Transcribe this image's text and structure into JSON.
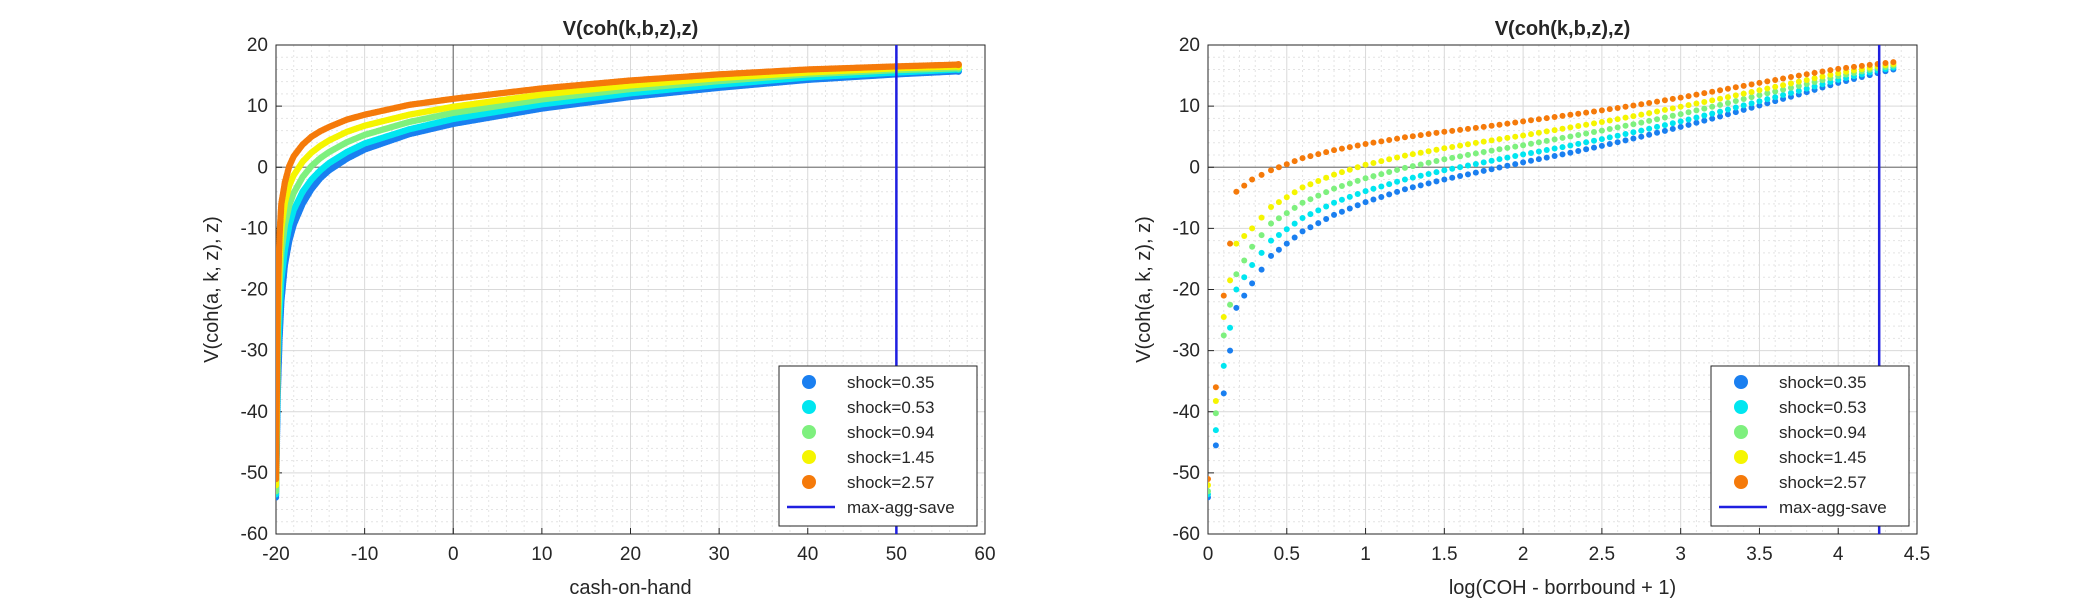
{
  "chart_data": [
    {
      "type": "scatter",
      "title": "V(coh(k,b,z),z)",
      "xlabel": "cash-on-hand",
      "ylabel": "V(coh(a, k, z), z)",
      "xlim": [
        -20,
        60
      ],
      "ylim": [
        -60,
        20
      ],
      "xticks": [
        -20,
        -10,
        0,
        10,
        20,
        30,
        40,
        50,
        60
      ],
      "yticks": [
        -60,
        -50,
        -40,
        -30,
        -20,
        -10,
        0,
        10,
        20
      ],
      "grid": true,
      "minor_grid": true,
      "legend_position": "bottom-right",
      "reference_lines": {
        "x": 0,
        "y": 0
      },
      "vertical_line": {
        "name": "max-agg-save",
        "x": 50,
        "color": "#1f1fe0"
      },
      "series": [
        {
          "name": "shock=0.35",
          "color": "#1a7ff0",
          "min_value": -54,
          "end_value": 15.7,
          "points": [
            [
              -20,
              -54
            ],
            [
              -19.8,
              -37
            ],
            [
              -19.6,
              -28
            ],
            [
              -19.4,
              -22
            ],
            [
              -19,
              -16
            ],
            [
              -18.5,
              -12
            ],
            [
              -18,
              -9.4
            ],
            [
              -17,
              -6
            ],
            [
              -16,
              -3.6
            ],
            [
              -15,
              -1.8
            ],
            [
              -14,
              -0.5
            ],
            [
              -12,
              1.4
            ],
            [
              -10,
              2.9
            ],
            [
              -5,
              5.4
            ],
            [
              0,
              7.1
            ],
            [
              10,
              9.6
            ],
            [
              20,
              11.5
            ],
            [
              30,
              13
            ],
            [
              40,
              14.3
            ],
            [
              50,
              15.2
            ],
            [
              57,
              15.7
            ]
          ]
        },
        {
          "name": "shock=0.53",
          "color": "#00e6f0",
          "min_value": -53.5,
          "end_value": 16.0,
          "points": [
            [
              -20,
              -53.5
            ],
            [
              -19.8,
              -32
            ],
            [
              -19.6,
              -24
            ],
            [
              -19.4,
              -18.5
            ],
            [
              -19,
              -13.5
            ],
            [
              -18.5,
              -9.5
            ],
            [
              -18,
              -7
            ],
            [
              -17,
              -4
            ],
            [
              -16,
              -2
            ],
            [
              -15,
              -0.5
            ],
            [
              -14,
              0.7
            ],
            [
              -12,
              2.5
            ],
            [
              -10,
              3.9
            ],
            [
              -5,
              6.2
            ],
            [
              0,
              7.9
            ],
            [
              10,
              10.3
            ],
            [
              20,
              12.1
            ],
            [
              30,
              13.5
            ],
            [
              40,
              14.7
            ],
            [
              50,
              15.5
            ],
            [
              57,
              16
            ]
          ]
        },
        {
          "name": "shock=0.94",
          "color": "#7ef07e",
          "min_value": -53,
          "end_value": 16.2,
          "points": [
            [
              -20,
              -53
            ],
            [
              -19.8,
              -27
            ],
            [
              -19.6,
              -19
            ],
            [
              -19.4,
              -14
            ],
            [
              -19,
              -9.5
            ],
            [
              -18.5,
              -6.2
            ],
            [
              -18,
              -4.2
            ],
            [
              -17,
              -1.6
            ],
            [
              -16,
              0.2
            ],
            [
              -15,
              1.5
            ],
            [
              -14,
              2.5
            ],
            [
              -12,
              4.1
            ],
            [
              -10,
              5.3
            ],
            [
              -5,
              7.4
            ],
            [
              0,
              8.9
            ],
            [
              10,
              11.1
            ],
            [
              20,
              12.8
            ],
            [
              30,
              14.1
            ],
            [
              40,
              15.2
            ],
            [
              50,
              15.9
            ],
            [
              57,
              16.2
            ]
          ]
        },
        {
          "name": "shock=1.45",
          "color": "#f5f500",
          "min_value": -52,
          "end_value": 16.5,
          "points": [
            [
              -20,
              -52
            ],
            [
              -19.8,
              -24
            ],
            [
              -19.6,
              -15
            ],
            [
              -19.4,
              -10
            ],
            [
              -19,
              -5.8
            ],
            [
              -18.5,
              -3
            ],
            [
              -18,
              -1.3
            ],
            [
              -17,
              0.9
            ],
            [
              -16,
              2.4
            ],
            [
              -15,
              3.5
            ],
            [
              -14,
              4.4
            ],
            [
              -12,
              5.8
            ],
            [
              -10,
              6.8
            ],
            [
              -5,
              8.6
            ],
            [
              0,
              9.9
            ],
            [
              10,
              11.9
            ],
            [
              20,
              13.4
            ],
            [
              30,
              14.6
            ],
            [
              40,
              15.5
            ],
            [
              50,
              16.2
            ],
            [
              57,
              16.5
            ]
          ]
        },
        {
          "name": "shock=2.57",
          "color": "#f57a0a",
          "min_value": -51,
          "end_value": 16.8,
          "points": [
            [
              -20,
              -51
            ],
            [
              -19.8,
              -21
            ],
            [
              -19.6,
              -11
            ],
            [
              -19.4,
              -6
            ],
            [
              -19,
              -2.5
            ],
            [
              -18.5,
              0.2
            ],
            [
              -18,
              1.8
            ],
            [
              -17,
              3.7
            ],
            [
              -16,
              5
            ],
            [
              -15,
              5.9
            ],
            [
              -14,
              6.6
            ],
            [
              -12,
              7.8
            ],
            [
              -10,
              8.6
            ],
            [
              -5,
              10.2
            ],
            [
              0,
              11.2
            ],
            [
              10,
              12.9
            ],
            [
              20,
              14.2
            ],
            [
              30,
              15.2
            ],
            [
              40,
              16
            ],
            [
              50,
              16.5
            ],
            [
              57,
              16.8
            ]
          ]
        }
      ]
    },
    {
      "type": "scatter",
      "title": "V(coh(k,b,z),z)",
      "xlabel": "log(COH - borrbound + 1)",
      "ylabel": "V(coh(a, k, z), z)",
      "xlim": [
        0,
        4.5
      ],
      "ylim": [
        -60,
        20
      ],
      "xticks": [
        0,
        0.5,
        1,
        1.5,
        2,
        2.5,
        3,
        3.5,
        4,
        4.5
      ],
      "yticks": [
        -60,
        -50,
        -40,
        -30,
        -20,
        -10,
        0,
        10,
        20
      ],
      "grid": true,
      "minor_grid": true,
      "legend_position": "bottom-right",
      "reference_lines": {
        "y": 0
      },
      "vertical_line": {
        "name": "max-agg-save",
        "x": 4.26,
        "color": "#1f1fe0"
      },
      "series": [
        {
          "name": "shock=0.35",
          "color": "#1a7ff0",
          "points": [
            [
              0,
              -54
            ],
            [
              0.1,
              -37
            ],
            [
              0.18,
              -23
            ],
            [
              0.28,
              -19
            ],
            [
              0.4,
              -14.5
            ],
            [
              0.6,
              -10.5
            ],
            [
              0.8,
              -7.8
            ],
            [
              1,
              -5.7
            ],
            [
              1.25,
              -3.6
            ],
            [
              1.5,
              -2
            ],
            [
              1.75,
              -0.6
            ],
            [
              2,
              0.8
            ],
            [
              2.25,
              2.1
            ],
            [
              2.5,
              3.5
            ],
            [
              2.75,
              5
            ],
            [
              3,
              6.6
            ],
            [
              3.25,
              8.3
            ],
            [
              3.5,
              10.1
            ],
            [
              3.75,
              11.9
            ],
            [
              4,
              13.8
            ],
            [
              4.25,
              15.4
            ],
            [
              4.35,
              16
            ]
          ]
        },
        {
          "name": "shock=0.53",
          "color": "#00e6f0",
          "points": [
            [
              0,
              -53.5
            ],
            [
              0.1,
              -32.5
            ],
            [
              0.18,
              -20
            ],
            [
              0.28,
              -16
            ],
            [
              0.4,
              -12
            ],
            [
              0.6,
              -8.3
            ],
            [
              0.8,
              -5.8
            ],
            [
              1,
              -3.9
            ],
            [
              1.25,
              -2
            ],
            [
              1.5,
              -0.5
            ],
            [
              1.75,
              0.8
            ],
            [
              2,
              2.1
            ],
            [
              2.25,
              3.3
            ],
            [
              2.5,
              4.6
            ],
            [
              2.75,
              6
            ],
            [
              3,
              7.5
            ],
            [
              3.25,
              9.1
            ],
            [
              3.5,
              10.8
            ],
            [
              3.75,
              12.5
            ],
            [
              4,
              14.3
            ],
            [
              4.25,
              15.8
            ],
            [
              4.35,
              16.3
            ]
          ]
        },
        {
          "name": "shock=0.94",
          "color": "#7ef07e",
          "points": [
            [
              0,
              -53
            ],
            [
              0.1,
              -27.5
            ],
            [
              0.18,
              -17.5
            ],
            [
              0.28,
              -13
            ],
            [
              0.4,
              -9.2
            ],
            [
              0.6,
              -5.8
            ],
            [
              0.8,
              -3.5
            ],
            [
              1,
              -1.8
            ],
            [
              1.25,
              -0.1
            ],
            [
              1.5,
              1.3
            ],
            [
              1.75,
              2.5
            ],
            [
              2,
              3.6
            ],
            [
              2.25,
              4.8
            ],
            [
              2.5,
              6
            ],
            [
              2.75,
              7.3
            ],
            [
              3,
              8.7
            ],
            [
              3.25,
              10.2
            ],
            [
              3.5,
              11.8
            ],
            [
              3.75,
              13.3
            ],
            [
              4,
              14.9
            ],
            [
              4.25,
              16.2
            ],
            [
              4.35,
              16.6
            ]
          ]
        },
        {
          "name": "shock=1.45",
          "color": "#f5f500",
          "points": [
            [
              0,
              -52
            ],
            [
              0.1,
              -24.5
            ],
            [
              0.18,
              -12.5
            ],
            [
              0.28,
              -10
            ],
            [
              0.4,
              -6.5
            ],
            [
              0.6,
              -3.3
            ],
            [
              0.8,
              -1.2
            ],
            [
              1,
              0.4
            ],
            [
              1.25,
              1.9
            ],
            [
              1.5,
              3.1
            ],
            [
              1.75,
              4.2
            ],
            [
              2,
              5.2
            ],
            [
              2.25,
              6.3
            ],
            [
              2.5,
              7.4
            ],
            [
              2.75,
              8.6
            ],
            [
              3,
              9.9
            ],
            [
              3.25,
              11.2
            ],
            [
              3.5,
              12.6
            ],
            [
              3.75,
              14
            ],
            [
              4,
              15.4
            ],
            [
              4.25,
              16.5
            ],
            [
              4.35,
              16.9
            ]
          ]
        },
        {
          "name": "shock=2.57",
          "color": "#f57a0a",
          "points": [
            [
              0,
              -51
            ],
            [
              0.1,
              -21
            ],
            [
              0.18,
              -4
            ],
            [
              0.28,
              -2
            ],
            [
              0.4,
              -0.5
            ],
            [
              0.6,
              1.5
            ],
            [
              0.8,
              2.8
            ],
            [
              1,
              3.8
            ],
            [
              1.25,
              4.9
            ],
            [
              1.5,
              5.8
            ],
            [
              1.75,
              6.6
            ],
            [
              2,
              7.5
            ],
            [
              2.25,
              8.4
            ],
            [
              2.5,
              9.3
            ],
            [
              2.75,
              10.3
            ],
            [
              3,
              11.4
            ],
            [
              3.25,
              12.6
            ],
            [
              3.5,
              13.8
            ],
            [
              3.75,
              15
            ],
            [
              4,
              16.1
            ],
            [
              4.25,
              16.9
            ],
            [
              4.35,
              17.2
            ]
          ]
        }
      ]
    }
  ]
}
